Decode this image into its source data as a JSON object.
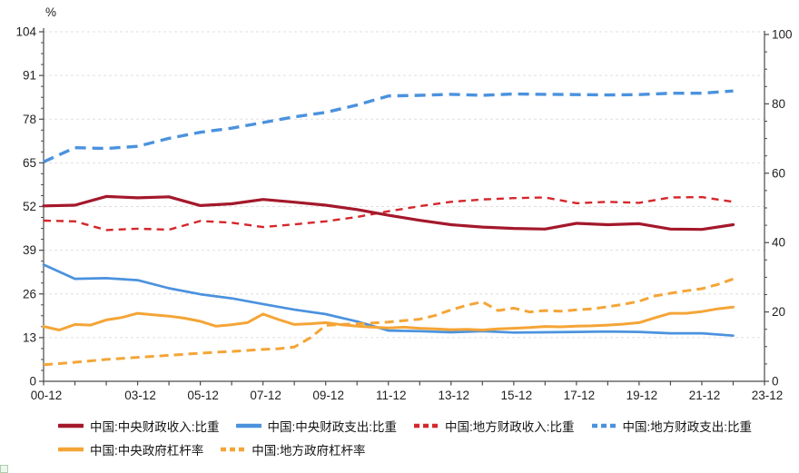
{
  "chart_data": {
    "type": "line",
    "title": "",
    "legend_position": "bottom",
    "grid": "horizontal-dashed",
    "colors": {
      "dark_red": "#A4182B",
      "bright_red": "#D5262B",
      "blue": "#4B92DE",
      "orange": "#F4A537",
      "gridline": "#DFDFDF",
      "axis": "#4A4A4A",
      "text": "#1F1F1F"
    },
    "left_axis": {
      "title": "%",
      "min": 0,
      "max": 104,
      "step": 13,
      "tick_labels": [
        "0",
        "13",
        "26",
        "39",
        "52",
        "65",
        "78",
        "91",
        "104"
      ]
    },
    "right_axis": {
      "min": 0,
      "max": 100,
      "step": 20,
      "tick_labels": [
        "0",
        "20",
        "40",
        "60",
        "80",
        "100"
      ]
    },
    "x_axis": {
      "tick_labels": [
        "00-12",
        "03-12",
        "05-12",
        "07-12",
        "09-12",
        "11-12",
        "13-12",
        "15-12",
        "17-12",
        "19-12",
        "21-12",
        "23-12"
      ],
      "tick_label_years": [
        0,
        3,
        5,
        7,
        9,
        11,
        13,
        15,
        17,
        19,
        21,
        23
      ],
      "minor_tick_every_years": 1,
      "range_years": [
        0,
        23
      ]
    },
    "legend_rows": [
      [
        0,
        1,
        2,
        3
      ],
      [
        4,
        5
      ]
    ],
    "series": [
      {
        "name": "中国:中央财政收入:比重",
        "color": "#A4182B",
        "line": "solid",
        "axis": "left",
        "x_start_year": 0,
        "x_step_years": 1,
        "values": [
          52.2,
          52.4,
          55.0,
          54.6,
          54.9,
          52.3,
          52.8,
          54.1,
          53.3,
          52.4,
          51.1,
          49.4,
          47.9,
          46.6,
          45.9,
          45.5,
          45.3,
          47.0,
          46.6,
          46.9,
          45.3,
          45.2,
          46.6
        ]
      },
      {
        "name": "中国:中央财政支出:比重",
        "color": "#4B92DE",
        "line": "solid",
        "axis": "left",
        "x_start_year": 0,
        "x_step_years": 1,
        "values": [
          34.7,
          30.5,
          30.7,
          30.1,
          27.7,
          25.9,
          24.7,
          23.0,
          21.3,
          20.0,
          17.8,
          15.1,
          14.9,
          14.6,
          14.9,
          14.5,
          14.6,
          14.7,
          14.8,
          14.7,
          14.3,
          14.3,
          13.6
        ]
      },
      {
        "name": "中国:地方财政收入:比重",
        "color": "#D5262B",
        "line": "dashed",
        "axis": "left",
        "x_start_year": 0,
        "x_step_years": 1,
        "values": [
          47.8,
          47.6,
          45.0,
          45.4,
          45.1,
          47.7,
          47.2,
          45.9,
          46.7,
          47.6,
          48.9,
          50.6,
          52.1,
          53.4,
          54.1,
          54.5,
          54.7,
          53.0,
          53.4,
          53.1,
          54.7,
          54.8,
          53.4
        ]
      },
      {
        "name": "中国:地方财政支出:比重",
        "color": "#4B92DE",
        "line": "dashed",
        "axis": "left",
        "x_start_year": 0,
        "x_step_years": 1,
        "values": [
          65.3,
          69.5,
          69.3,
          69.9,
          72.3,
          74.1,
          75.3,
          77.0,
          78.7,
          80.0,
          82.2,
          84.9,
          85.1,
          85.4,
          85.1,
          85.5,
          85.4,
          85.3,
          85.2,
          85.3,
          85.7,
          85.7,
          86.4
        ]
      },
      {
        "name": "中国:中央政府杠杆率",
        "color": "#F4A537",
        "line": "solid",
        "axis": "right",
        "x_start_year": 0,
        "x_step_years": 0.5,
        "values": [
          15.8,
          14.8,
          16.4,
          16.2,
          17.7,
          18.4,
          19.6,
          19.2,
          18.8,
          18.2,
          17.3,
          15.9,
          16.3,
          16.9,
          19.4,
          17.8,
          16.4,
          16.6,
          16.9,
          16.3,
          15.9,
          15.6,
          15.4,
          15.6,
          15.3,
          15.1,
          14.9,
          15.0,
          14.8,
          15.1,
          15.3,
          15.5,
          15.8,
          15.7,
          15.9,
          16.0,
          16.2,
          16.5,
          16.9,
          18.3,
          19.6,
          19.6,
          20.1,
          20.9,
          21.4
        ]
      },
      {
        "name": "中国:地方政府杠杆率",
        "color": "#F4A537",
        "line": "dashed",
        "axis": "right",
        "x_start_year": 0,
        "x_step_years": 0.5,
        "values": [
          4.8,
          5.1,
          5.5,
          5.9,
          6.3,
          6.6,
          6.9,
          7.2,
          7.5,
          7.8,
          8.1,
          8.4,
          8.6,
          8.9,
          9.2,
          9.4,
          9.9,
          12.5,
          16.1,
          16.4,
          16.6,
          16.8,
          17.1,
          17.5,
          17.9,
          19.0,
          20.6,
          21.9,
          22.9,
          20.4,
          21.1,
          20.0,
          20.4,
          20.2,
          20.6,
          20.9,
          21.5,
          22.2,
          23.1,
          24.6,
          25.4,
          26.1,
          26.7,
          27.9,
          29.5
        ]
      }
    ]
  }
}
